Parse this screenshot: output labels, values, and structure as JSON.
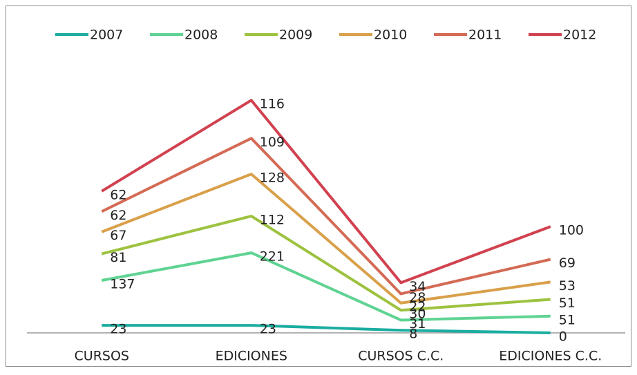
{
  "chart_data": {
    "type": "line",
    "stacked": true,
    "categories": [
      "CURSOS",
      "EDICIONES",
      "CURSOS C.C.",
      "EDICIONES C.C."
    ],
    "series": [
      {
        "name": "2007",
        "color": "#1aada0",
        "values": [
          23,
          23,
          8,
          0
        ]
      },
      {
        "name": "2008",
        "color": "#5fd392",
        "values": [
          137,
          221,
          31,
          51
        ]
      },
      {
        "name": "2009",
        "color": "#9dc23f",
        "values": [
          81,
          112,
          30,
          51
        ]
      },
      {
        "name": "2010",
        "color": "#d9a04a",
        "values": [
          67,
          128,
          22,
          53
        ]
      },
      {
        "name": "2011",
        "color": "#d46a55",
        "values": [
          62,
          109,
          28,
          69
        ]
      },
      {
        "name": "2012",
        "color": "#d1414f",
        "values": [
          62,
          116,
          34,
          100
        ]
      }
    ],
    "ylim": [
      0,
      800
    ],
    "legend": "top"
  }
}
